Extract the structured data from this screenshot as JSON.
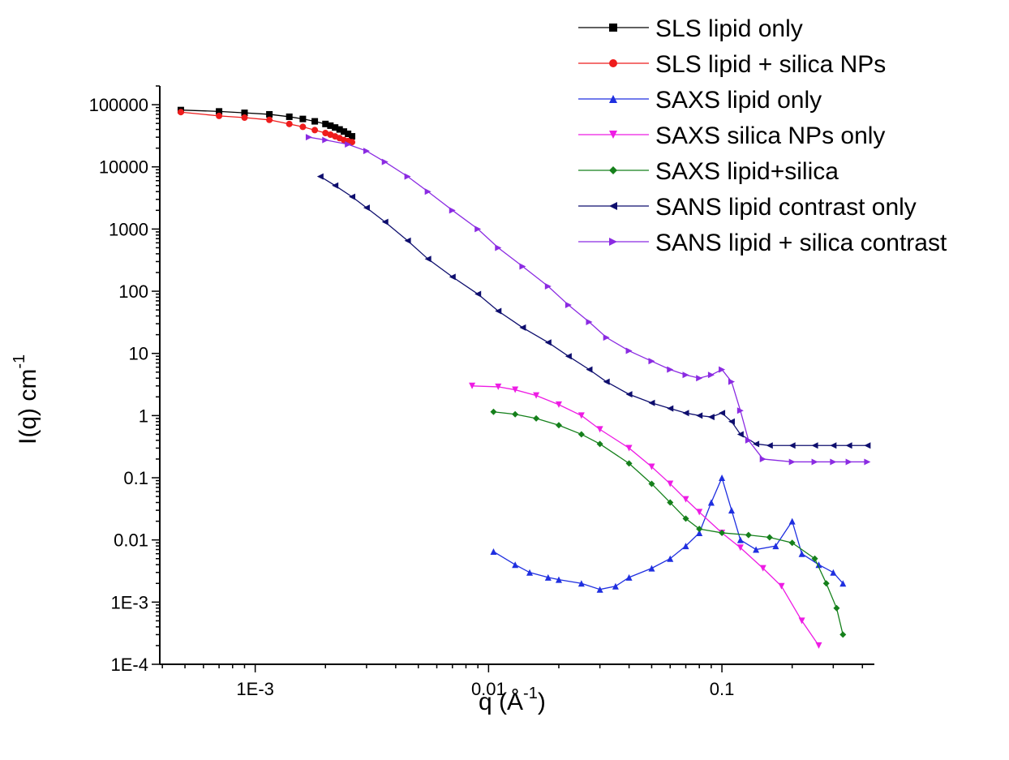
{
  "chart_data": {
    "type": "scatter",
    "xscale": "log",
    "yscale": "log",
    "xlim": [
      0.00039,
      0.45
    ],
    "ylim": [
      0.0001,
      200000
    ],
    "xlabel": "q (Å",
    "xlabel_sup": "-1",
    "xlabel_close": ")",
    "ylabel": "I(q) cm",
    "ylabel_sup": "-1",
    "xticks": [
      {
        "value": 0.001,
        "label": "1E-3"
      },
      {
        "value": 0.01,
        "label": "0.01"
      },
      {
        "value": 0.1,
        "label": "0.1"
      }
    ],
    "yticks": [
      {
        "value": 0.0001,
        "label": "1E-4"
      },
      {
        "value": 0.001,
        "label": "1E-3"
      },
      {
        "value": 0.01,
        "label": "0.01"
      },
      {
        "value": 0.1,
        "label": "0.1"
      },
      {
        "value": 1,
        "label": "1"
      },
      {
        "value": 10,
        "label": "10"
      },
      {
        "value": 100,
        "label": "100"
      },
      {
        "value": 1000,
        "label": "1000"
      },
      {
        "value": 10000,
        "label": "10000"
      },
      {
        "value": 100000,
        "label": "100000"
      }
    ],
    "legend_position": "top-right",
    "grid": false,
    "series": [
      {
        "name": "SLS lipid only",
        "color": "#000000",
        "marker": "square",
        "x": [
          0.00048,
          0.0007,
          0.0009,
          0.00115,
          0.0014,
          0.0016,
          0.0018,
          0.002,
          0.0021,
          0.0022,
          0.0023,
          0.0024,
          0.0025,
          0.0026
        ],
        "y": [
          82000,
          78000,
          74000,
          70000,
          64000,
          59000,
          54000,
          49000,
          46000,
          43000,
          40000,
          37000,
          34000,
          31000
        ]
      },
      {
        "name": "SLS lipid + silica NPs",
        "color": "#ee1c1c",
        "marker": "circle",
        "x": [
          0.00048,
          0.0007,
          0.0009,
          0.00115,
          0.0014,
          0.0016,
          0.0018,
          0.002,
          0.0021,
          0.0022,
          0.0023,
          0.0024,
          0.0025,
          0.0026
        ],
        "y": [
          76000,
          66000,
          62000,
          57000,
          49000,
          44000,
          39000,
          35000,
          33000,
          31000,
          29000,
          27000,
          26000,
          25000
        ]
      },
      {
        "name": "SAXS lipid only",
        "color": "#1f2fe0",
        "marker": "triangle-up",
        "x": [
          0.0105,
          0.013,
          0.015,
          0.018,
          0.02,
          0.025,
          0.03,
          0.035,
          0.04,
          0.05,
          0.06,
          0.07,
          0.08,
          0.09,
          0.1,
          0.11,
          0.12,
          0.14,
          0.17,
          0.2,
          0.22,
          0.26,
          0.3,
          0.33
        ],
        "y": [
          0.0065,
          0.004,
          0.003,
          0.0025,
          0.0023,
          0.002,
          0.0016,
          0.0018,
          0.0025,
          0.0035,
          0.005,
          0.008,
          0.013,
          0.04,
          0.1,
          0.03,
          0.01,
          0.007,
          0.008,
          0.02,
          0.006,
          0.004,
          0.003,
          0.002
        ]
      },
      {
        "name": "SAXS silica NPs only",
        "color": "#ee1ce4",
        "marker": "triangle-down",
        "x": [
          0.0085,
          0.011,
          0.013,
          0.016,
          0.02,
          0.025,
          0.03,
          0.04,
          0.05,
          0.06,
          0.07,
          0.08,
          0.1,
          0.12,
          0.15,
          0.18,
          0.22,
          0.26
        ],
        "y": [
          3,
          2.9,
          2.6,
          2.1,
          1.5,
          1,
          0.6,
          0.3,
          0.15,
          0.08,
          0.045,
          0.028,
          0.013,
          0.0075,
          0.0035,
          0.0018,
          0.0005,
          0.0002
        ]
      },
      {
        "name": "SAXS lipid+silica",
        "color": "#15801b",
        "marker": "diamond",
        "x": [
          0.0105,
          0.013,
          0.016,
          0.02,
          0.025,
          0.03,
          0.04,
          0.05,
          0.06,
          0.07,
          0.08,
          0.1,
          0.13,
          0.16,
          0.2,
          0.25,
          0.28,
          0.31,
          0.33
        ],
        "y": [
          1.15,
          1.05,
          0.9,
          0.7,
          0.5,
          0.35,
          0.17,
          0.08,
          0.04,
          0.022,
          0.015,
          0.013,
          0.012,
          0.011,
          0.009,
          0.005,
          0.002,
          0.0008,
          0.0003
        ]
      },
      {
        "name": "SANS lipid contrast only",
        "color": "#0e0e6e",
        "marker": "triangle-left",
        "x": [
          0.0019,
          0.0022,
          0.0026,
          0.003,
          0.0036,
          0.0045,
          0.0055,
          0.007,
          0.009,
          0.011,
          0.014,
          0.018,
          0.022,
          0.027,
          0.032,
          0.04,
          0.05,
          0.06,
          0.07,
          0.08,
          0.09,
          0.1,
          0.11,
          0.12,
          0.14,
          0.16,
          0.2,
          0.25,
          0.3,
          0.35,
          0.42
        ],
        "y": [
          7000,
          5000,
          3300,
          2200,
          1300,
          650,
          330,
          170,
          90,
          48,
          26,
          15,
          9,
          5.5,
          3.5,
          2.2,
          1.6,
          1.3,
          1.1,
          1,
          0.95,
          1.1,
          0.8,
          0.5,
          0.35,
          0.33,
          0.33,
          0.33,
          0.33,
          0.33,
          0.33
        ]
      },
      {
        "name": "SANS lipid + silica contrast",
        "color": "#8b2be2",
        "marker": "triangle-right",
        "x": [
          0.0017,
          0.002,
          0.0025,
          0.003,
          0.0036,
          0.0045,
          0.0055,
          0.007,
          0.009,
          0.011,
          0.014,
          0.018,
          0.022,
          0.027,
          0.032,
          0.04,
          0.05,
          0.06,
          0.07,
          0.08,
          0.09,
          0.1,
          0.11,
          0.12,
          0.13,
          0.15,
          0.2,
          0.25,
          0.3,
          0.35,
          0.42
        ],
        "y": [
          30000,
          27000,
          23000,
          18000,
          12000,
          7000,
          4000,
          2000,
          1000,
          500,
          250,
          120,
          60,
          32,
          18,
          11,
          7.5,
          5.5,
          4.5,
          4,
          4.5,
          5.5,
          3.5,
          1.2,
          0.4,
          0.2,
          0.18,
          0.18,
          0.18,
          0.18,
          0.18
        ]
      }
    ]
  }
}
